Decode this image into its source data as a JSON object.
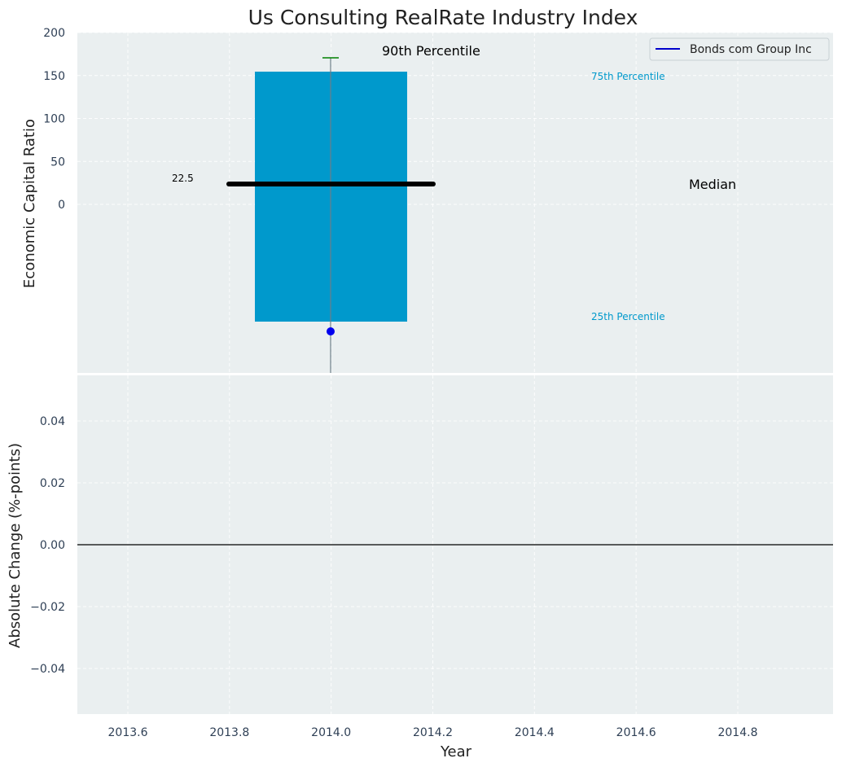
{
  "chart_data": [
    {
      "type": "bar",
      "title": "Us Consulting RealRate Industry Index",
      "ylabel": "Economic Capital Ratio",
      "x_ticks": [
        "2013.6",
        "2013.8",
        "2014.0",
        "2014.2",
        "2014.4",
        "2014.6",
        "2014.8"
      ],
      "y_ticks": [
        "0",
        "50",
        "100",
        "150",
        "200"
      ],
      "xlim": [
        2013.5,
        2014.99
      ],
      "legend": {
        "entries": [
          "Bonds com Group Inc"
        ],
        "placement": "top-right",
        "colors": [
          "#0000cc"
        ]
      },
      "year": 2014.0,
      "box": {
        "p25_label": "25th Percentile",
        "p75": 155,
        "p75_label": "75th Percentile",
        "color": "#0099cc"
      },
      "median": {
        "value": 22.5,
        "value_label": "22.5",
        "label": "Median"
      },
      "p90": {
        "value": 170,
        "label": "90th Percentile",
        "color": "#008000"
      },
      "company_point": {
        "series": "Bonds com Group Inc",
        "x": 2014.0
      },
      "grid": true
    },
    {
      "type": "line",
      "xlabel": "Year",
      "ylabel": "Absolute Change (%-points)",
      "y_ticks": [
        "0.04",
        "0.02",
        "0.00",
        "−0.02",
        "−0.04"
      ],
      "ylim": [
        -0.055,
        0.055
      ],
      "zero_line": 0.0,
      "grid": true
    }
  ],
  "colors": {
    "panel_bg": "#eaeff0",
    "box": "#0099cc",
    "median": "#000000",
    "whisker": "#008000",
    "point": "#0000ee"
  }
}
